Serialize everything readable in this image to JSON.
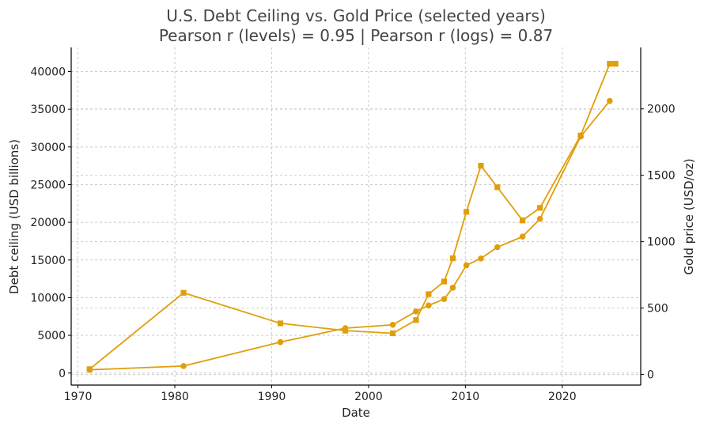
{
  "chart_data": {
    "type": "line",
    "title": "U.S. Debt Ceiling vs. Gold Price (selected years)",
    "subtitle": "Pearson r (levels) = 0.95 | Pearson r (logs) = 0.87",
    "xlabel": "Date",
    "ylabel_left": "Debt ceiling (USD billions)",
    "ylabel_right": "Gold price (USD/oz)",
    "xlim": [
      1969.3,
      2028.1
    ],
    "ylim_left": [
      -1600,
      43200
    ],
    "ylim_right": [
      -80,
      2463
    ],
    "x_ticks": [
      1970,
      1980,
      1990,
      2000,
      2010,
      2020
    ],
    "y_ticks_left": [
      0,
      5000,
      10000,
      15000,
      20000,
      25000,
      30000,
      35000,
      40000
    ],
    "y_ticks_right": [
      0,
      500,
      1000,
      1500,
      2000
    ],
    "grid": true,
    "line_color": "#e09e0a",
    "series": [
      {
        "axis": "left",
        "marker": "circle",
        "x": [
          1971.2,
          1980.9,
          1990.9,
          1997.6,
          2002.5,
          2004.9,
          2006.2,
          2007.8,
          2008.7,
          2010.1,
          2011.6,
          2013.3,
          2015.9,
          2017.7,
          2021.9,
          2024.9
        ],
        "values": [
          430,
          930,
          4100,
          5950,
          6400,
          8180,
          8970,
          9820,
          11320,
          14300,
          15200,
          16700,
          18100,
          20460,
          31380,
          36100
        ]
      },
      {
        "axis": "right",
        "marker": "square",
        "x": [
          1971.2,
          1980.9,
          1990.9,
          1997.6,
          2002.5,
          2004.9,
          2006.2,
          2007.8,
          2008.7,
          2010.1,
          2011.6,
          2013.3,
          2015.9,
          2017.7,
          2021.9,
          2024.9,
          2025.5
        ],
        "values": [
          40,
          615,
          385,
          330,
          310,
          410,
          605,
          700,
          875,
          1225,
          1572,
          1410,
          1160,
          1255,
          1800,
          2340,
          2340
        ]
      }
    ]
  }
}
